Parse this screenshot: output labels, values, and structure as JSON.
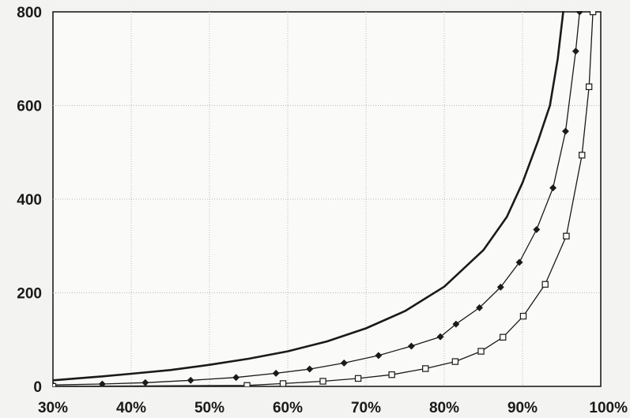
{
  "chart_data": {
    "type": "line",
    "title": "",
    "xlabel": "",
    "ylabel": "",
    "xlim": [
      0.3,
      1.0
    ],
    "ylim": [
      0,
      800
    ],
    "x_ticks": [
      {
        "value": 0.3,
        "label": "30%"
      },
      {
        "value": 0.4,
        "label": "40%"
      },
      {
        "value": 0.5,
        "label": "50%"
      },
      {
        "value": 0.6,
        "label": "60%"
      },
      {
        "value": 0.7,
        "label": "70%"
      },
      {
        "value": 0.8,
        "label": "80%"
      },
      {
        "value": 0.9,
        "label": "90%"
      },
      {
        "value": 1.0,
        "label": "100%"
      }
    ],
    "y_ticks": [
      {
        "value": 0,
        "label": "0"
      },
      {
        "value": 200,
        "label": "200"
      },
      {
        "value": 400,
        "label": "400"
      },
      {
        "value": 600,
        "label": "600"
      },
      {
        "value": 800,
        "label": "800"
      }
    ],
    "grid": true,
    "legend": false,
    "series": [
      {
        "marker": "none",
        "line_weight": "thick",
        "color": "#1a1a1a",
        "points": [
          [
            0.3,
            13
          ],
          [
            0.33,
            17
          ],
          [
            0.36,
            21
          ],
          [
            0.4,
            27
          ],
          [
            0.45,
            35
          ],
          [
            0.5,
            46
          ],
          [
            0.55,
            59
          ],
          [
            0.6,
            75
          ],
          [
            0.65,
            96
          ],
          [
            0.7,
            124
          ],
          [
            0.75,
            161
          ],
          [
            0.8,
            213
          ],
          [
            0.85,
            291
          ],
          [
            0.88,
            362
          ],
          [
            0.9,
            435
          ],
          [
            0.92,
            525
          ],
          [
            0.935,
            600
          ],
          [
            0.945,
            700
          ],
          [
            0.952,
            800
          ]
        ]
      },
      {
        "marker": "diamond",
        "line_weight": "thin",
        "color": "#1a1a1a",
        "points": [
          [
            0.3,
            3
          ],
          [
            0.363,
            5
          ],
          [
            0.418,
            8
          ],
          [
            0.476,
            13
          ],
          [
            0.534,
            19
          ],
          [
            0.585,
            28
          ],
          [
            0.628,
            37
          ],
          [
            0.672,
            50
          ],
          [
            0.716,
            66
          ],
          [
            0.758,
            86
          ],
          [
            0.795,
            106
          ],
          [
            0.815,
            133
          ],
          [
            0.845,
            168
          ],
          [
            0.872,
            212
          ],
          [
            0.896,
            265
          ],
          [
            0.918,
            335
          ],
          [
            0.939,
            424
          ],
          [
            0.955,
            545
          ],
          [
            0.968,
            716
          ],
          [
            0.973,
            800
          ]
        ]
      },
      {
        "marker": "square",
        "line_weight": "thin",
        "color": "#1a1a1a",
        "points": [
          [
            0.3,
            0
          ],
          [
            0.548,
            2
          ],
          [
            0.594,
            6
          ],
          [
            0.645,
            11
          ],
          [
            0.69,
            17
          ],
          [
            0.733,
            25
          ],
          [
            0.776,
            38
          ],
          [
            0.814,
            53
          ],
          [
            0.847,
            75
          ],
          [
            0.875,
            105
          ],
          [
            0.901,
            150
          ],
          [
            0.929,
            218
          ],
          [
            0.956,
            321
          ],
          [
            0.976,
            494
          ],
          [
            0.985,
            640
          ],
          [
            0.99,
            800
          ]
        ]
      }
    ]
  }
}
